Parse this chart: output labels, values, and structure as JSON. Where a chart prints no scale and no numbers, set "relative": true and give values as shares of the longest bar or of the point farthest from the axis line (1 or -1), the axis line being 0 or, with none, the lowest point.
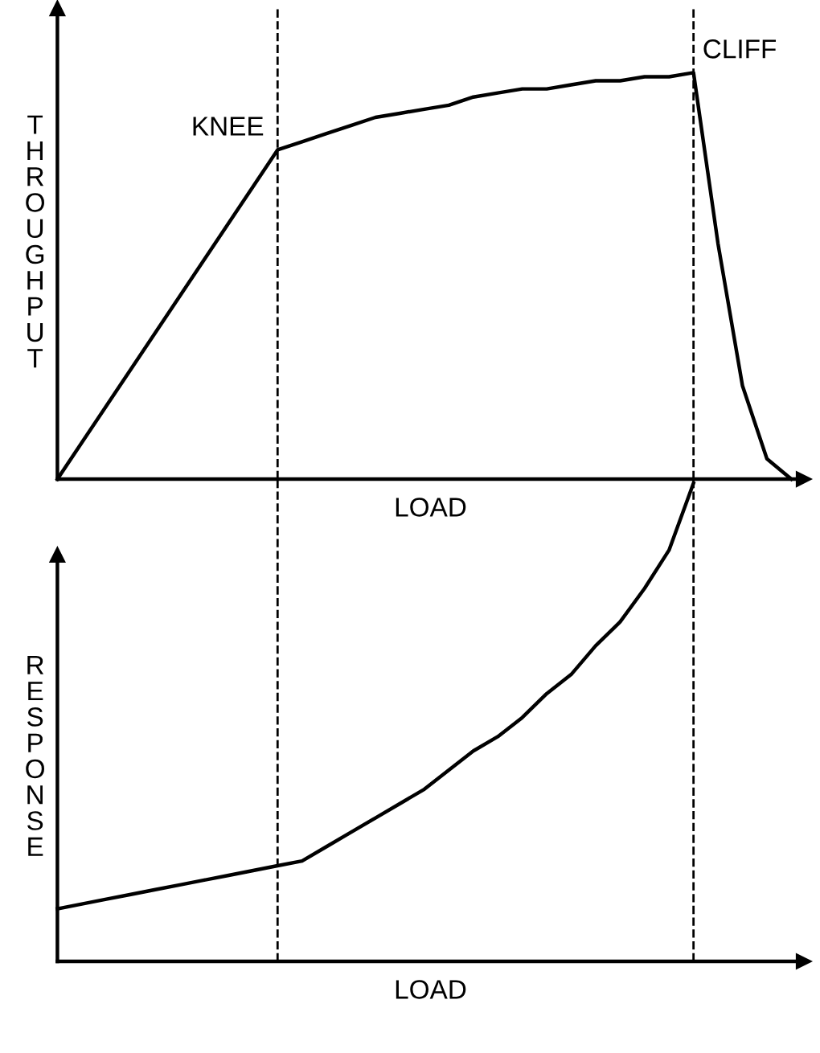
{
  "chart_data": [
    {
      "type": "line",
      "relative": true,
      "xlabel": "LOAD",
      "ylabel": "THROUGHPUT",
      "tick_labels": false,
      "categories": [
        null,
        null,
        null,
        null,
        null,
        null,
        null,
        null,
        null,
        null,
        null,
        null,
        null,
        null,
        null,
        null,
        null,
        null,
        null,
        null,
        null,
        null,
        null,
        null,
        null,
        null,
        null,
        null,
        null,
        null,
        null
      ],
      "series": [
        {
          "color": "#000000",
          "values": [
            0,
            0.09,
            0.18,
            0.27,
            0.36,
            0.45,
            0.54,
            0.63,
            0.72,
            0.81,
            0.83,
            0.85,
            0.87,
            0.89,
            0.9,
            0.91,
            0.92,
            0.94,
            0.95,
            0.96,
            0.96,
            0.97,
            0.98,
            0.98,
            0.99,
            0.99,
            1.0,
            0.58,
            0.23,
            0.05,
            0
          ]
        }
      ],
      "annotations": [
        "KNEE",
        "CLIFF"
      ]
    },
    {
      "type": "line",
      "relative": true,
      "xlabel": "LOAD",
      "ylabel": "RESPONSE",
      "tick_labels": false,
      "categories": [
        null,
        null,
        null,
        null,
        null,
        null,
        null,
        null,
        null,
        null,
        null,
        null,
        null,
        null,
        null,
        null,
        null,
        null,
        null,
        null,
        null,
        null,
        null,
        null,
        null,
        null,
        null,
        null,
        null,
        null,
        null
      ],
      "series": [
        {
          "color": "#000000",
          "values": [
            0.11,
            0.12,
            0.13,
            0.14,
            0.15,
            0.16,
            0.17,
            0.18,
            0.19,
            0.2,
            0.21,
            0.24,
            0.27,
            0.3,
            0.33,
            0.36,
            0.4,
            0.44,
            0.47,
            0.51,
            0.56,
            0.6,
            0.66,
            0.71,
            0.78,
            0.86,
            1.0,
            null,
            null,
            null,
            null
          ]
        }
      ]
    }
  ]
}
